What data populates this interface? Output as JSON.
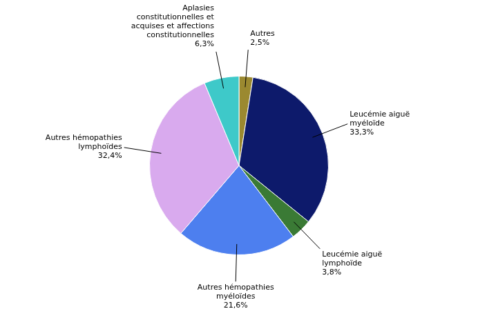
{
  "chart_data": {
    "type": "pie",
    "categories": [
      "Autres",
      "Leucémie aiguë\nmyéloïde",
      "Leucémie aiguë\nlymphoïde",
      "Autres hémopathies\nmyéloïdes",
      "Autres hémopathies\nlymphoïdes",
      "Aplasies\nconstitutionnelles et\nacquises et affections\nconstitutionnelles"
    ],
    "values": [
      2.5,
      33.3,
      3.8,
      21.6,
      32.4,
      6.3
    ],
    "value_labels": [
      "2,5%",
      "33,3%",
      "3,8%",
      "21,6%",
      "32,4%",
      "6,3%"
    ],
    "colors": [
      "#9b8930",
      "#0d1a6b",
      "#3a7a35",
      "#4d7fef",
      "#d9aaee",
      "#3ec9c9"
    ],
    "data_labels": true
  }
}
